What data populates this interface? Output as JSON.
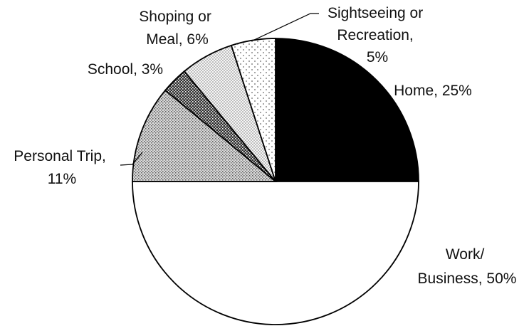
{
  "chart_data": {
    "type": "pie",
    "title": "",
    "start_angle_deg": 0,
    "direction": "clockwise",
    "slices": [
      {
        "name": "Home",
        "value": 25,
        "pattern": "solid-black",
        "label_lines": [
          "Home, 25%"
        ]
      },
      {
        "name": "Work/ Business",
        "value": 50,
        "pattern": "white",
        "label_lines": [
          "Work/",
          "Business, 50%"
        ]
      },
      {
        "name": "Personal Trip",
        "value": 11,
        "pattern": "fine-crosshatch",
        "label_lines": [
          "Personal Trip,",
          "11%"
        ]
      },
      {
        "name": "School",
        "value": 3,
        "pattern": "dark-checker",
        "label_lines": [
          "School, 3%"
        ]
      },
      {
        "name": "Shoping or Meal",
        "value": 6,
        "pattern": "light-dots",
        "label_lines": [
          "Shoping or",
          "Meal, 6%"
        ]
      },
      {
        "name": "Sightseeing or Recreation",
        "value": 5,
        "pattern": "sparse-dots",
        "label_lines": [
          "Sightseeing or",
          "Recreation,",
          "5%"
        ]
      }
    ],
    "legend": "none"
  }
}
